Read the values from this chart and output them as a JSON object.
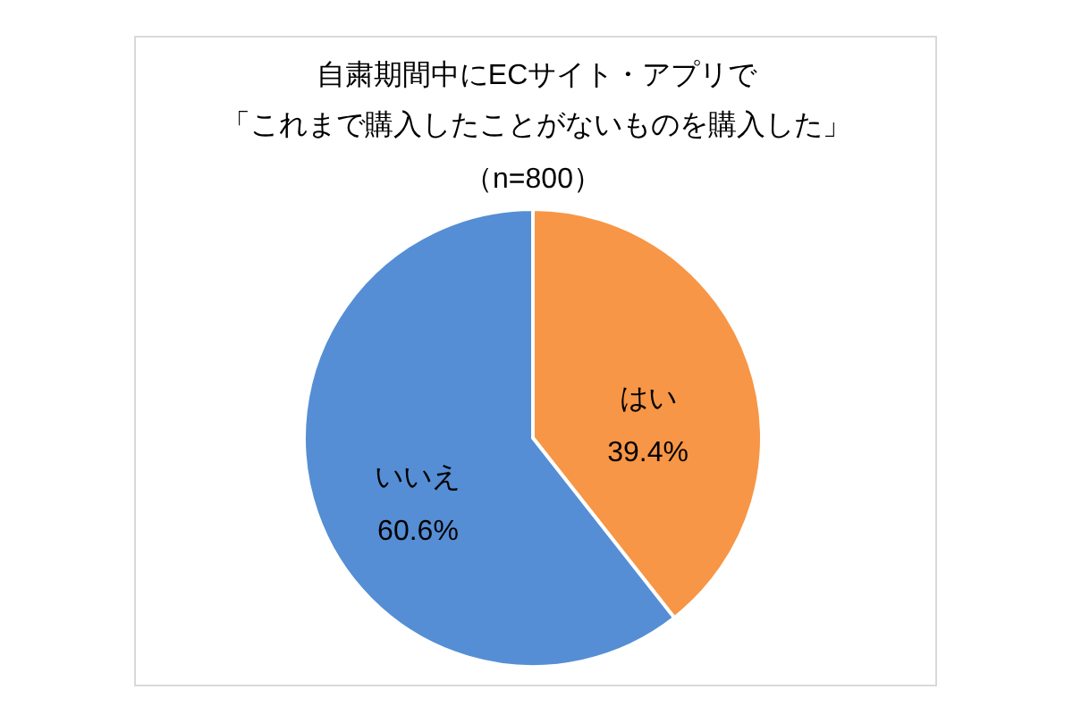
{
  "chart_data": {
    "type": "pie",
    "title": "自粛期間中にECサイト・アプリで",
    "subtitle": "「これまで購入したことがないものを購入した」",
    "annotations": [
      "（n=800）"
    ],
    "categories": [
      "はい",
      "いいえ"
    ],
    "values": [
      39.4,
      60.6
    ],
    "colors": [
      "#f79646",
      "#558ed5"
    ],
    "value_labels": [
      "39.4%",
      "60.6%"
    ]
  }
}
